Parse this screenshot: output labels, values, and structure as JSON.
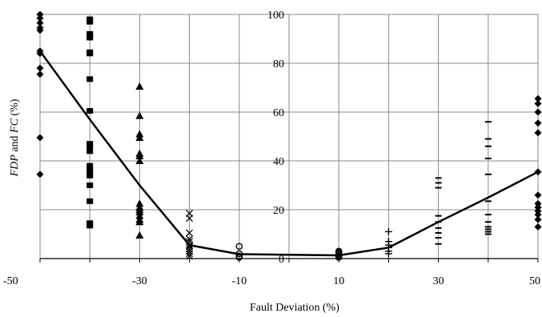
{
  "chart_data": {
    "type": "scatter",
    "title": "",
    "xlabel": "Fault Deviation (%)",
    "ylabel": {
      "parts": [
        "FDP",
        " and ",
        "FC",
        " (%)"
      ]
    },
    "x_ticks": [
      "-50",
      "-40",
      "-30",
      "-20",
      "-10",
      "0",
      "10",
      "20",
      "30",
      "40",
      "50"
    ],
    "x_tick_labels_shown": [
      "-50",
      "",
      "-30",
      "",
      "-10",
      "",
      "10",
      "",
      "30",
      "",
      "50"
    ],
    "y_ticks": [
      0,
      20,
      40,
      60,
      80,
      100
    ],
    "xlim": [
      -50,
      50
    ],
    "ylim": [
      0,
      100
    ],
    "grid": "vertical and horizontal",
    "line_color": "#000000",
    "marker_color": "#000000",
    "line": {
      "x": [
        -50,
        -40,
        -30,
        -20,
        -10,
        0,
        10,
        20,
        30,
        40,
        50
      ],
      "y": [
        85,
        57,
        30,
        5.5,
        1.8,
        null,
        1.3,
        4.5,
        15,
        25,
        35.5
      ]
    },
    "series": [
      {
        "marker": "diamond",
        "x": -50,
        "y": [
          100,
          98.5,
          96.5,
          94.5,
          93.5,
          85,
          84,
          78,
          75.5,
          49.5,
          34.5
        ]
      },
      {
        "marker": "square",
        "x": -40,
        "y": [
          98,
          97,
          92,
          91.5,
          90.5,
          84.5,
          84,
          73.5,
          60.5,
          47,
          46,
          44,
          38,
          36.5,
          35,
          34,
          30,
          23.5,
          14.5,
          13.5
        ]
      },
      {
        "marker": "triangle",
        "x": -30,
        "y": [
          70.5,
          58.5,
          51,
          49.5,
          43,
          42,
          40,
          22.5,
          21,
          20,
          19,
          17.5,
          16,
          15,
          9.5
        ]
      },
      {
        "marker": "x",
        "x": -20,
        "y": [
          18.5,
          16.5,
          10.5,
          8,
          7,
          5.5,
          5,
          4,
          3,
          2,
          1
        ]
      },
      {
        "marker": "circle",
        "x": -10,
        "y": [
          5,
          2,
          1,
          0.5
        ]
      },
      {
        "marker": "circle",
        "x": 10,
        "y": [
          3,
          2.5,
          2,
          1.5,
          1,
          0.5
        ]
      },
      {
        "marker": "plus",
        "x": 20,
        "y": [
          11,
          7,
          5.5,
          4.5,
          3,
          2
        ]
      },
      {
        "marker": "dash",
        "x": 30,
        "y": [
          33,
          31,
          29,
          17.5,
          15,
          12.5,
          10.5,
          8.5,
          6
        ]
      },
      {
        "marker": "dash",
        "x": 40,
        "y": [
          56,
          49,
          46,
          41,
          34.5,
          23.5,
          18,
          15,
          13,
          12,
          11,
          10
        ]
      },
      {
        "marker": "diamond",
        "x": 50,
        "y": [
          65.5,
          63.5,
          60,
          55.5,
          51.5,
          35.5,
          26,
          22.5,
          21,
          19.5,
          18,
          16,
          13
        ]
      }
    ]
  }
}
